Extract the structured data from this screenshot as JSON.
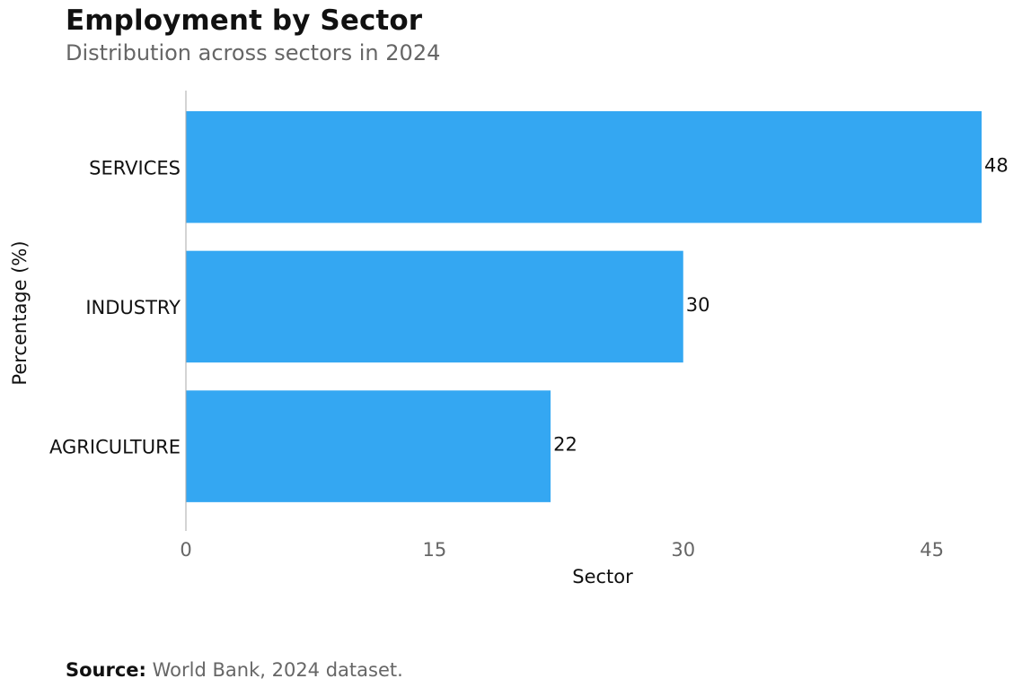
{
  "title": "Employment by Sector",
  "subtitle": "Distribution across sectors in 2024",
  "footer": {
    "label": "Source:",
    "text": "World Bank, 2024 dataset."
  },
  "chart_data": {
    "type": "bar",
    "orientation": "horizontal",
    "categories": [
      "SERVICES",
      "INDUSTRY",
      "AGRICULTURE"
    ],
    "values": [
      48,
      30,
      22
    ],
    "data_labels": [
      "48",
      "30",
      "22"
    ],
    "xlabel": "Sector",
    "ylabel": "Percentage (%)",
    "xlim": [
      0,
      48
    ],
    "xticks": [
      0,
      15,
      30,
      45
    ],
    "xtick_labels": [
      "0",
      "15",
      "30",
      "45"
    ],
    "grid": false,
    "bar_color": "#34A7F2"
  }
}
